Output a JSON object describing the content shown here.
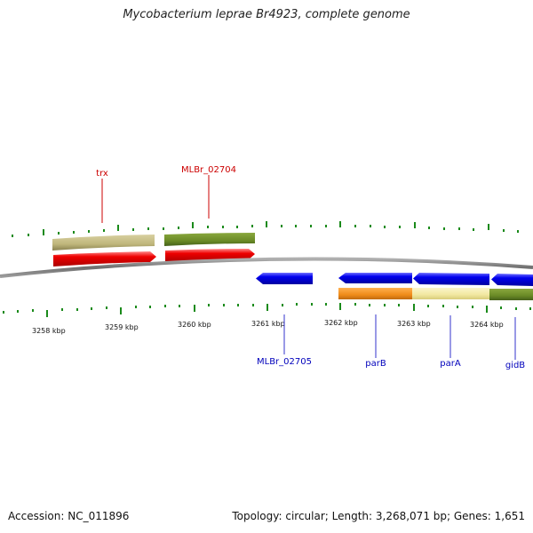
{
  "title": "Mycobacterium leprae Br4923, complete genome",
  "footer": {
    "accession": "Accession: NC_011896",
    "stats": "Topology: circular; Length: 3,268,071 bp; Genes: 1,651"
  },
  "colors": {
    "backbone": "#808080",
    "tick": "#1a8a1a",
    "forward_label": "#cc0000",
    "reverse_label": "#0000bb",
    "cds_forward": "#ee0000",
    "cds_reverse": "#0000ee",
    "cog_khaki": "#c2b97e",
    "cog_olive": "#6f8f2a",
    "cog_orange": "#f08c1a",
    "cog_pale": "#f2e8a0"
  },
  "scale_labels": [
    "3258 kbp",
    "3259 kbp",
    "3260 kbp",
    "3261 kbp",
    "3262 kbp",
    "3263 kbp",
    "3264 kbp"
  ],
  "gene_labels": {
    "forward": [
      "trx",
      "MLBr_02704"
    ],
    "reverse": [
      "MLBr_02705",
      "parB",
      "parA",
      "gidB"
    ]
  }
}
